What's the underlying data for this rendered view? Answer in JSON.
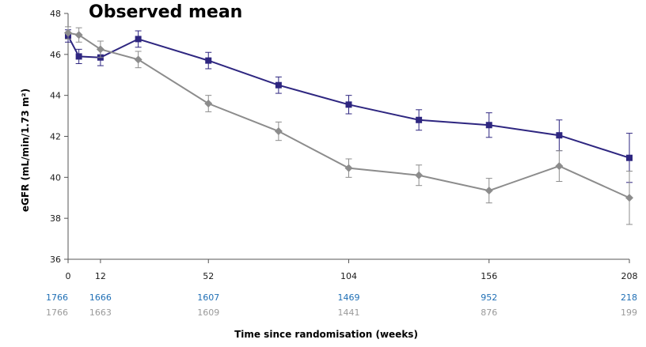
{
  "chart_data": {
    "type": "line",
    "title": "Observed mean",
    "xlabel": "Time since randomisation (weeks)",
    "ylabel": "eGFR (mL/min/1.73 m²)",
    "ylim": [
      36,
      48
    ],
    "xlim": [
      0,
      208
    ],
    "yticks": [
      "36",
      "38",
      "40",
      "42",
      "44",
      "46",
      "48"
    ],
    "xticks": [
      "0",
      "12",
      "52",
      "104",
      "156",
      "208"
    ],
    "grid": false,
    "legend": "none",
    "series": [
      {
        "marker": "square",
        "color": "#2e2680",
        "x": [
          0,
          4,
          12,
          26,
          52,
          78,
          104,
          130,
          156,
          182,
          208
        ],
        "y": [
          46.9,
          45.9,
          45.85,
          46.75,
          45.7,
          44.5,
          43.55,
          42.8,
          42.55,
          42.05,
          40.95
        ],
        "err": [
          0.3,
          0.35,
          0.4,
          0.4,
          0.4,
          0.4,
          0.45,
          0.5,
          0.6,
          0.75,
          1.2
        ]
      },
      {
        "marker": "diamond",
        "color": "#8c8c8c",
        "x": [
          0,
          4,
          12,
          26,
          52,
          78,
          104,
          130,
          156,
          182,
          208
        ],
        "y": [
          47.05,
          46.95,
          46.25,
          45.75,
          43.6,
          42.25,
          40.45,
          40.1,
          39.35,
          40.55,
          39.0
        ],
        "err": [
          0.3,
          0.35,
          0.4,
          0.4,
          0.4,
          0.45,
          0.45,
          0.5,
          0.6,
          0.75,
          1.3
        ]
      }
    ],
    "n_at_risk": {
      "x": [
        0,
        12,
        52,
        104,
        156,
        208
      ],
      "rows": [
        {
          "color": "#1f6fb5",
          "values": [
            "1766",
            "1666",
            "1607",
            "1469",
            "952",
            "218"
          ]
        },
        {
          "color": "#9a9a9a",
          "values": [
            "1766",
            "1663",
            "1609",
            "1441",
            "876",
            "199"
          ]
        }
      ]
    }
  }
}
